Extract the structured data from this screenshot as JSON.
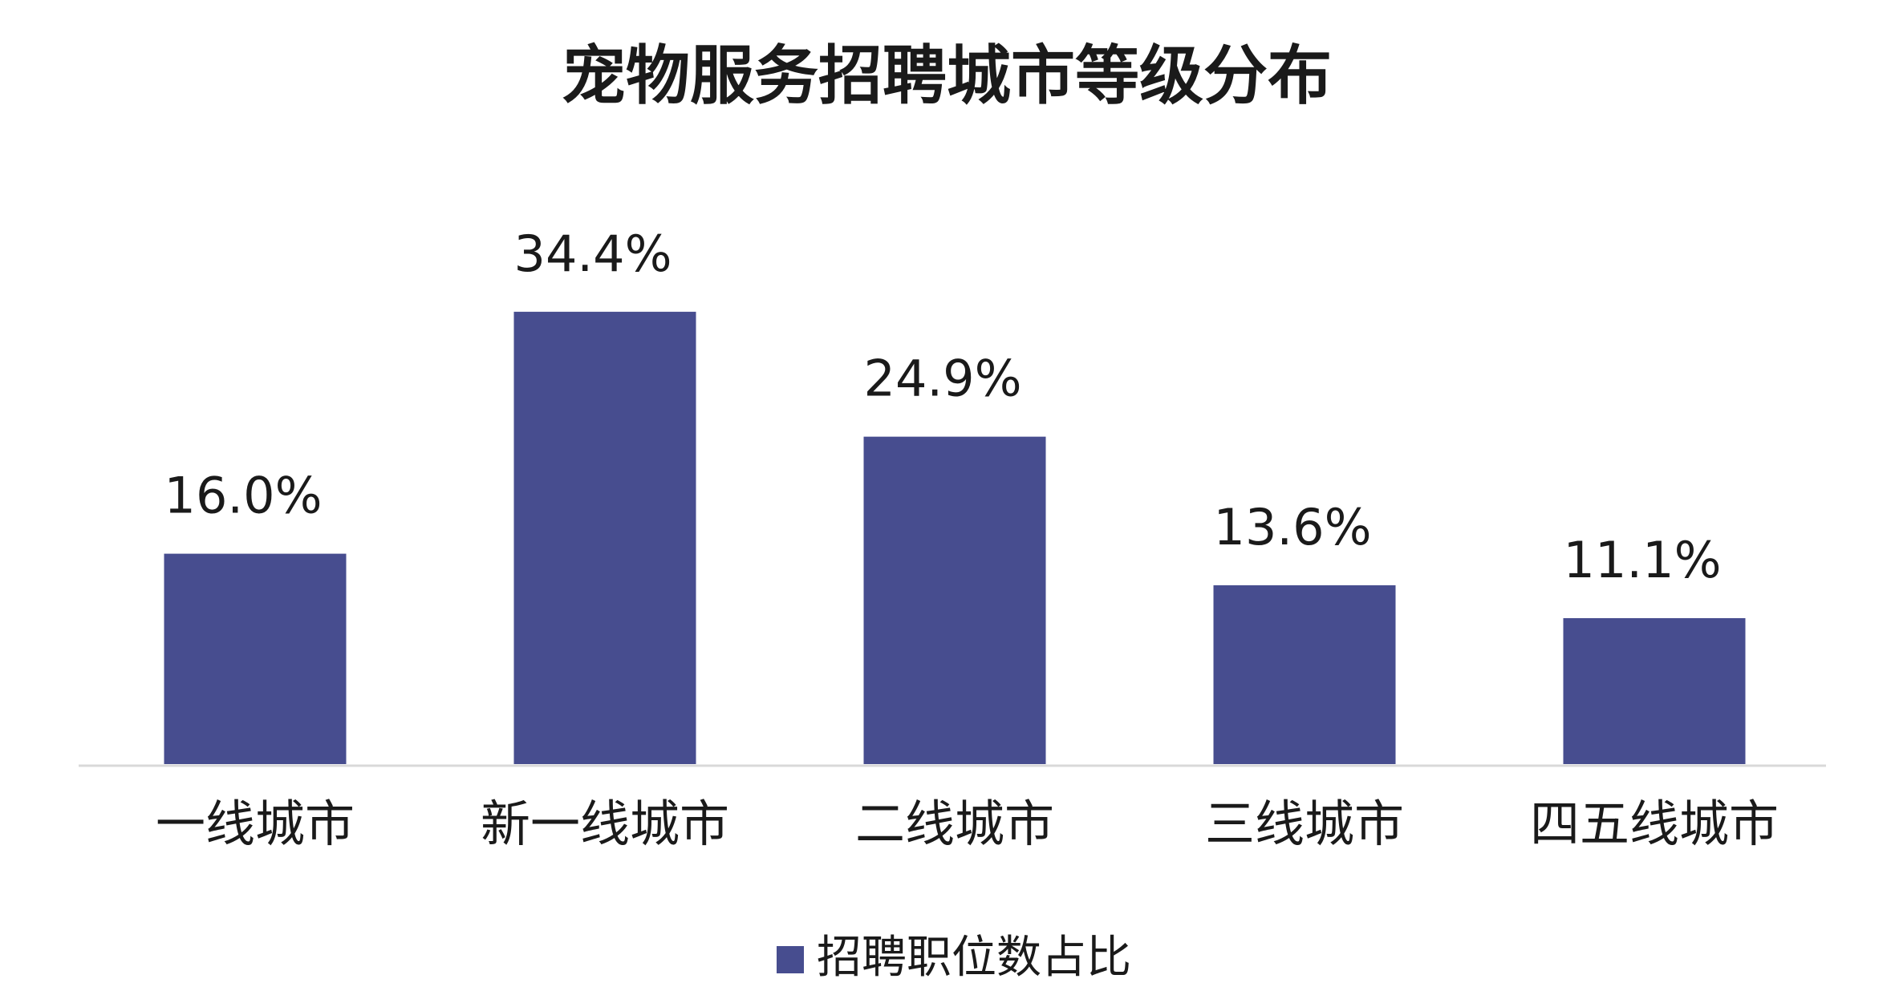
{
  "chart_data": {
    "type": "bar",
    "title": "宠物服务招聘城市等级分布",
    "categories": [
      "一线城市",
      "新一线城市",
      "二线城市",
      "三线城市",
      "四五线城市"
    ],
    "series": [
      {
        "name": "招聘职位数占比",
        "color": "#474d8f",
        "values": [
          16.0,
          34.4,
          24.9,
          13.6,
          11.1
        ],
        "value_labels": [
          "16.0%",
          "34.4%",
          "24.9%",
          "13.6%",
          "11.1%"
        ]
      }
    ],
    "legend": "bottom"
  }
}
